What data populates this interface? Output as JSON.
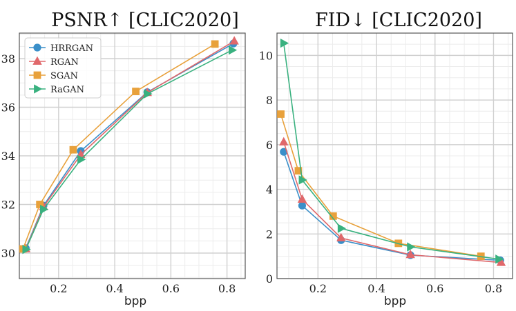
{
  "chart_data": [
    {
      "type": "line",
      "title": "PSNR↑ [CLIC2020]",
      "xlabel": "bpp",
      "ylabel": "",
      "xlim": [
        0.06,
        0.865
      ],
      "ylim": [
        28.95,
        39.05
      ],
      "xticks": [
        0.2,
        0.4,
        0.6,
        0.8
      ],
      "xtick_labels": [
        "0.2",
        "0.4",
        "0.6",
        "0.8"
      ],
      "yticks": [
        30,
        32,
        34,
        36,
        38
      ],
      "ytick_labels": [
        "30",
        "32",
        "34",
        "36",
        "38"
      ],
      "grid": true,
      "legend": "top-left",
      "series": [
        {
          "name": "HRRGAN",
          "color": "#3a8fc9",
          "marker": "circle",
          "x": [
            0.083,
            0.146,
            0.279,
            0.516,
            0.823
          ],
          "y": [
            30.2,
            31.95,
            34.2,
            36.62,
            38.62
          ]
        },
        {
          "name": "RGAN",
          "color": "#e0686b",
          "marker": "triangle-up",
          "x": [
            0.083,
            0.146,
            0.279,
            0.516,
            0.826
          ],
          "y": [
            30.17,
            31.9,
            34.05,
            36.6,
            38.72
          ]
        },
        {
          "name": "SGAN",
          "color": "#e8a13b",
          "marker": "square",
          "x": [
            0.073,
            0.133,
            0.252,
            0.475,
            0.757
          ],
          "y": [
            30.17,
            32.0,
            34.25,
            36.65,
            38.6
          ]
        },
        {
          "name": "RaGAN",
          "color": "#39b17f",
          "marker": "triangle-right",
          "x": [
            0.083,
            0.146,
            0.279,
            0.516,
            0.818
          ],
          "y": [
            30.15,
            31.8,
            33.85,
            36.55,
            38.35
          ]
        }
      ]
    },
    {
      "type": "line",
      "title": "FID↓ [CLIC2020]",
      "xlabel": "bpp",
      "ylabel": "",
      "xlim": [
        0.06,
        0.865
      ],
      "ylim": [
        0.0,
        11.0
      ],
      "xticks": [
        0.2,
        0.4,
        0.6,
        0.8
      ],
      "xtick_labels": [
        "0.2",
        "0.4",
        "0.6",
        "0.8"
      ],
      "yticks": [
        0,
        2,
        4,
        6,
        8,
        10
      ],
      "ytick_labels": [
        "0",
        "2",
        "4",
        "6",
        "8",
        "10"
      ],
      "grid": true,
      "legend": "",
      "series": [
        {
          "name": "HRRGAN",
          "color": "#3a8fc9",
          "marker": "circle",
          "x": [
            0.083,
            0.146,
            0.279,
            0.516,
            0.823
          ],
          "y": [
            5.68,
            3.27,
            1.72,
            1.05,
            0.82
          ]
        },
        {
          "name": "RGAN",
          "color": "#e0686b",
          "marker": "triangle-up",
          "x": [
            0.083,
            0.146,
            0.279,
            0.516,
            0.826
          ],
          "y": [
            6.12,
            3.55,
            1.82,
            1.07,
            0.72
          ]
        },
        {
          "name": "SGAN",
          "color": "#e8a13b",
          "marker": "square",
          "x": [
            0.073,
            0.133,
            0.252,
            0.475,
            0.757
          ],
          "y": [
            7.37,
            4.83,
            2.8,
            1.58,
            1.0
          ]
        },
        {
          "name": "RaGAN",
          "color": "#39b17f",
          "marker": "triangle-right",
          "x": [
            0.083,
            0.146,
            0.279,
            0.516,
            0.818
          ],
          "y": [
            10.55,
            4.42,
            2.25,
            1.42,
            0.87
          ]
        }
      ]
    }
  ]
}
